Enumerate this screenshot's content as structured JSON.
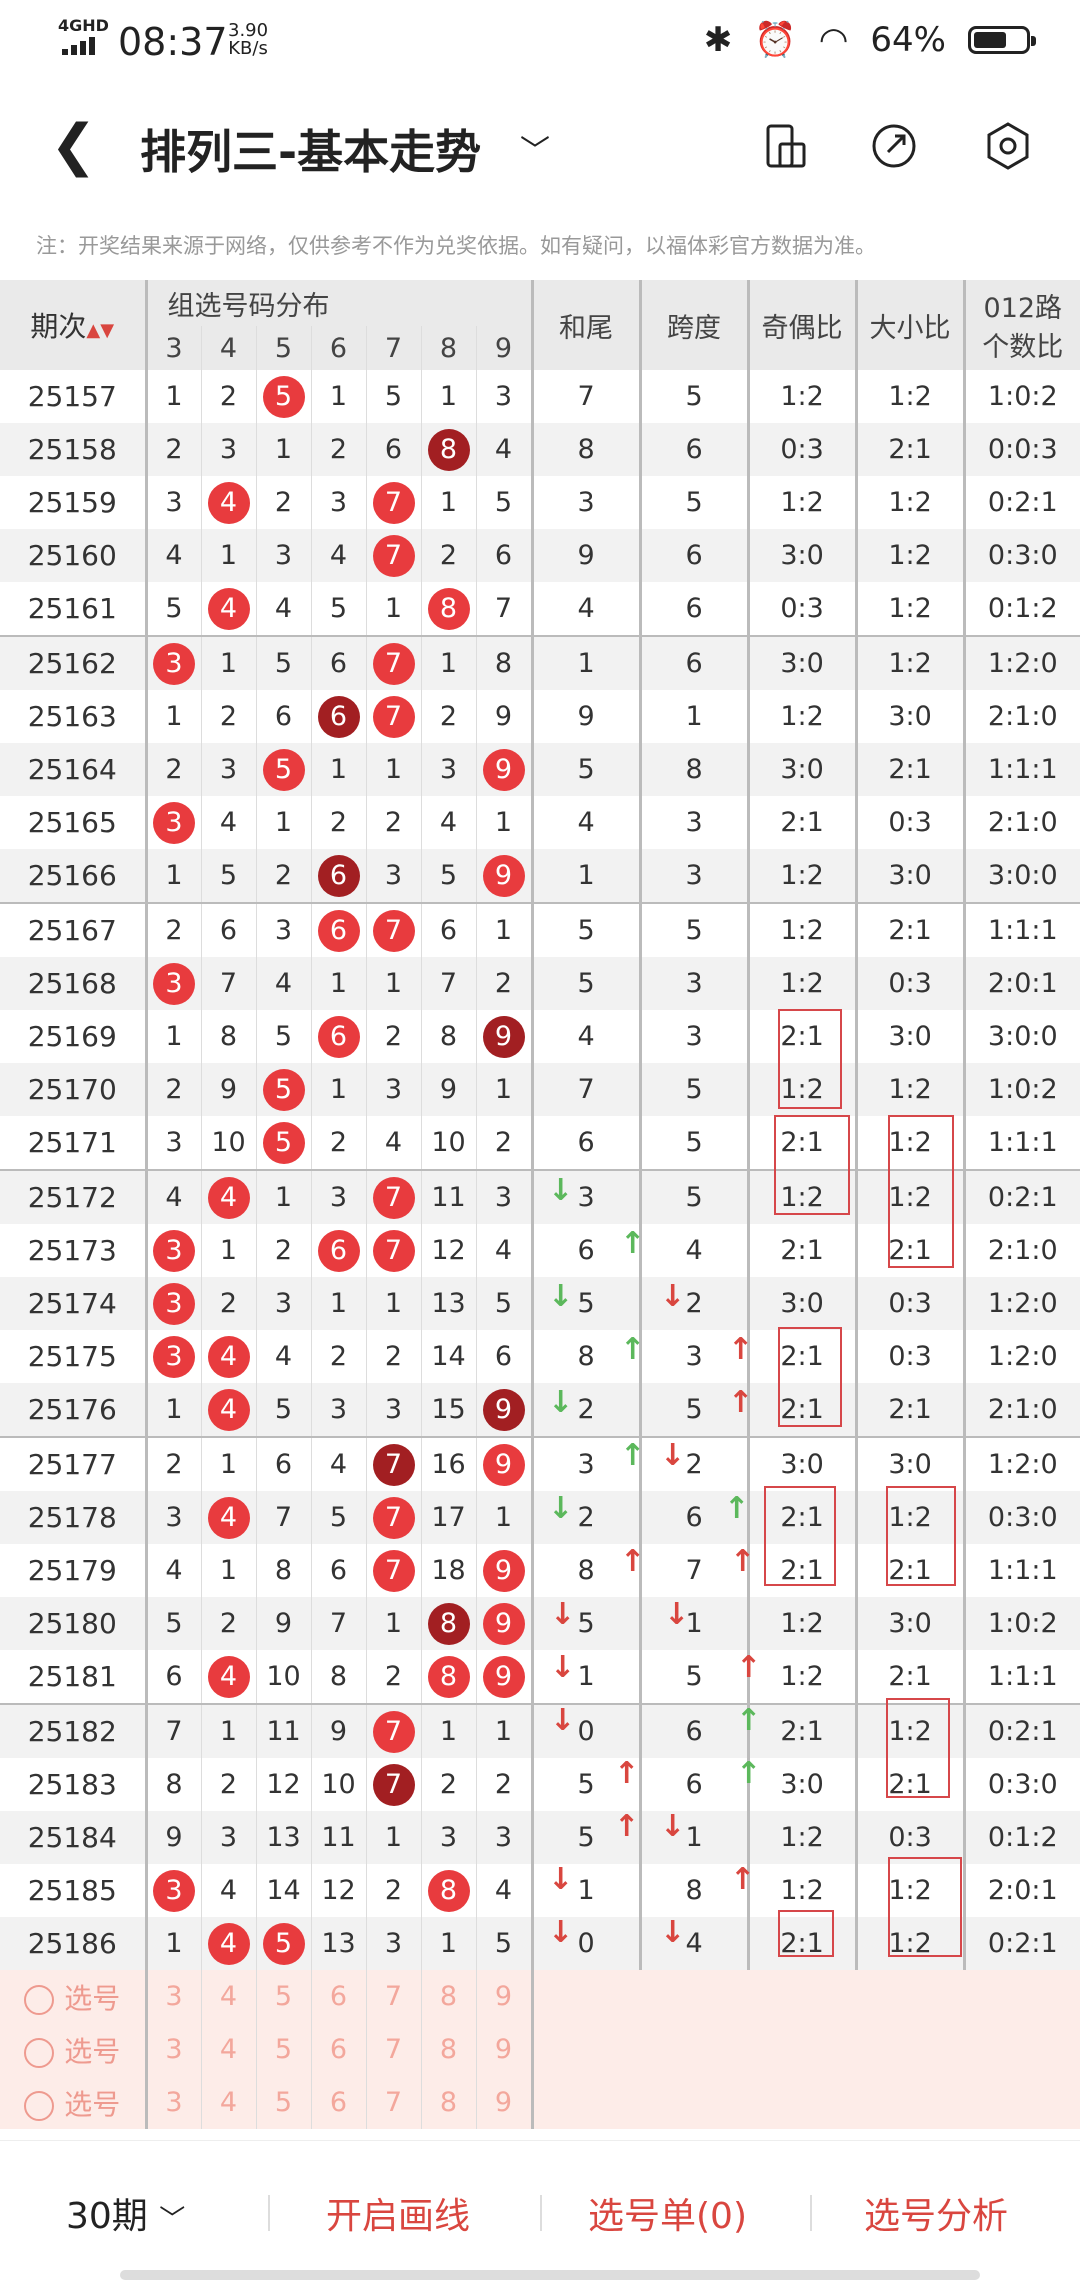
{
  "status": {
    "network": "4GHD",
    "time": "08:37",
    "speed_value": "3.90",
    "speed_unit": "KB/s",
    "battery": "64%",
    "battery_level": 0.64
  },
  "nav": {
    "title": "排列三-基本走势",
    "icons": [
      "back-icon",
      "chevron-down-icon",
      "device-icon",
      "share-icon",
      "settings-icon"
    ]
  },
  "note": "注：开奖结果来源于网络，仅供参考不作为兑奖依据。如有疑问，以福体彩官方数据为准。",
  "header": {
    "issue": "期次",
    "group": "组选号码分布",
    "cols": [
      "3",
      "4",
      "5",
      "6",
      "7",
      "8",
      "9"
    ],
    "sum_tail": "和尾",
    "span": "跨度",
    "odd_even": "奇偶比",
    "big_small": "大小比",
    "road_line1": "012路",
    "road_line2": "个数比"
  },
  "rows": [
    {
      "issue": "25157",
      "c": [
        "1",
        "2",
        "5",
        "1",
        "5",
        "1",
        "3"
      ],
      "b": [
        null,
        null,
        "red",
        null,
        null,
        null,
        null
      ],
      "sum": "7",
      "span": "5",
      "oe": "1:2",
      "bs": "1:2",
      "r": "1:0:2"
    },
    {
      "issue": "25158",
      "c": [
        "2",
        "3",
        "1",
        "2",
        "6",
        "8",
        "4"
      ],
      "b": [
        null,
        null,
        null,
        null,
        null,
        "dark",
        null
      ],
      "sum": "8",
      "span": "6",
      "oe": "0:3",
      "bs": "2:1",
      "r": "0:0:3"
    },
    {
      "issue": "25159",
      "c": [
        "3",
        "4",
        "2",
        "3",
        "7",
        "1",
        "5"
      ],
      "b": [
        null,
        "red",
        null,
        null,
        "red",
        null,
        null
      ],
      "sum": "3",
      "span": "5",
      "oe": "1:2",
      "bs": "1:2",
      "r": "0:2:1"
    },
    {
      "issue": "25160",
      "c": [
        "4",
        "1",
        "3",
        "4",
        "7",
        "2",
        "6"
      ],
      "b": [
        null,
        null,
        null,
        null,
        "red",
        null,
        null
      ],
      "sum": "9",
      "span": "6",
      "oe": "3:0",
      "bs": "1:2",
      "r": "0:3:0"
    },
    {
      "issue": "25161",
      "c": [
        "5",
        "4",
        "4",
        "5",
        "1",
        "8",
        "7"
      ],
      "b": [
        null,
        "red",
        null,
        null,
        null,
        "red",
        null
      ],
      "sum": "4",
      "span": "6",
      "oe": "0:3",
      "bs": "1:2",
      "r": "0:1:2"
    },
    {
      "issue": "25162",
      "c": [
        "3",
        "1",
        "5",
        "6",
        "7",
        "1",
        "8"
      ],
      "b": [
        "red",
        null,
        null,
        null,
        "red",
        null,
        null
      ],
      "sum": "1",
      "span": "6",
      "oe": "3:0",
      "bs": "1:2",
      "r": "1:2:0"
    },
    {
      "issue": "25163",
      "c": [
        "1",
        "2",
        "6",
        "6",
        "7",
        "2",
        "9"
      ],
      "b": [
        null,
        null,
        null,
        "dark",
        "red",
        null,
        null
      ],
      "sum": "9",
      "span": "1",
      "oe": "1:2",
      "bs": "3:0",
      "r": "2:1:0"
    },
    {
      "issue": "25164",
      "c": [
        "2",
        "3",
        "5",
        "1",
        "1",
        "3",
        "9"
      ],
      "b": [
        null,
        null,
        "red",
        null,
        null,
        null,
        "red"
      ],
      "sum": "5",
      "span": "8",
      "oe": "3:0",
      "bs": "2:1",
      "r": "1:1:1"
    },
    {
      "issue": "25165",
      "c": [
        "3",
        "4",
        "1",
        "2",
        "2",
        "4",
        "1"
      ],
      "b": [
        "red",
        null,
        null,
        null,
        null,
        null,
        null
      ],
      "sum": "4",
      "span": "3",
      "oe": "2:1",
      "bs": "0:3",
      "r": "2:1:0"
    },
    {
      "issue": "25166",
      "c": [
        "1",
        "5",
        "2",
        "6",
        "3",
        "5",
        "9"
      ],
      "b": [
        null,
        null,
        null,
        "dark",
        null,
        null,
        "red"
      ],
      "sum": "1",
      "span": "3",
      "oe": "1:2",
      "bs": "3:0",
      "r": "3:0:0"
    },
    {
      "issue": "25167",
      "c": [
        "2",
        "6",
        "3",
        "6",
        "7",
        "6",
        "1"
      ],
      "b": [
        null,
        null,
        null,
        "red",
        "red",
        null,
        null
      ],
      "sum": "5",
      "span": "5",
      "oe": "1:2",
      "bs": "2:1",
      "r": "1:1:1"
    },
    {
      "issue": "25168",
      "c": [
        "3",
        "7",
        "4",
        "1",
        "1",
        "7",
        "2"
      ],
      "b": [
        "red",
        null,
        null,
        null,
        null,
        null,
        null
      ],
      "sum": "5",
      "span": "3",
      "oe": "1:2",
      "bs": "0:3",
      "r": "2:0:1"
    },
    {
      "issue": "25169",
      "c": [
        "1",
        "8",
        "5",
        "6",
        "2",
        "8",
        "9"
      ],
      "b": [
        null,
        null,
        null,
        "red",
        null,
        null,
        "dark"
      ],
      "sum": "4",
      "span": "3",
      "oe": "2:1",
      "bs": "3:0",
      "r": "3:0:0"
    },
    {
      "issue": "25170",
      "c": [
        "2",
        "9",
        "5",
        "1",
        "3",
        "9",
        "1"
      ],
      "b": [
        null,
        null,
        "red",
        null,
        null,
        null,
        null
      ],
      "sum": "7",
      "span": "5",
      "oe": "1:2",
      "bs": "1:2",
      "r": "1:0:2"
    },
    {
      "issue": "25171",
      "c": [
        "3",
        "10",
        "5",
        "2",
        "4",
        "10",
        "2"
      ],
      "b": [
        null,
        null,
        "red",
        null,
        null,
        null,
        null
      ],
      "sum": "6",
      "span": "5",
      "oe": "2:1",
      "bs": "1:2",
      "r": "1:1:1"
    },
    {
      "issue": "25172",
      "c": [
        "4",
        "4",
        "1",
        "3",
        "7",
        "11",
        "3"
      ],
      "b": [
        null,
        "red",
        null,
        null,
        "red",
        null,
        null
      ],
      "sum": "3",
      "span": "5",
      "oe": "1:2",
      "bs": "1:2",
      "r": "0:2:1"
    },
    {
      "issue": "25173",
      "c": [
        "3",
        "1",
        "2",
        "6",
        "7",
        "12",
        "4"
      ],
      "b": [
        "red",
        null,
        null,
        "red",
        "red",
        null,
        null
      ],
      "sum": "6",
      "span": "4",
      "oe": "2:1",
      "bs": "2:1",
      "r": "2:1:0"
    },
    {
      "issue": "25174",
      "c": [
        "3",
        "2",
        "3",
        "1",
        "1",
        "13",
        "5"
      ],
      "b": [
        "red",
        null,
        null,
        null,
        null,
        null,
        null
      ],
      "sum": "5",
      "span": "2",
      "oe": "3:0",
      "bs": "0:3",
      "r": "1:2:0"
    },
    {
      "issue": "25175",
      "c": [
        "3",
        "4",
        "4",
        "2",
        "2",
        "14",
        "6"
      ],
      "b": [
        "red",
        "red",
        null,
        null,
        null,
        null,
        null
      ],
      "sum": "8",
      "span": "3",
      "oe": "2:1",
      "bs": "0:3",
      "r": "1:2:0"
    },
    {
      "issue": "25176",
      "c": [
        "1",
        "4",
        "5",
        "3",
        "3",
        "15",
        "9"
      ],
      "b": [
        null,
        "red",
        null,
        null,
        null,
        null,
        "dark"
      ],
      "sum": "2",
      "span": "5",
      "oe": "2:1",
      "bs": "2:1",
      "r": "2:1:0"
    },
    {
      "issue": "25177",
      "c": [
        "2",
        "1",
        "6",
        "4",
        "7",
        "16",
        "9"
      ],
      "b": [
        null,
        null,
        null,
        null,
        "dark",
        null,
        "red"
      ],
      "sum": "3",
      "span": "2",
      "oe": "3:0",
      "bs": "3:0",
      "r": "1:2:0"
    },
    {
      "issue": "25178",
      "c": [
        "3",
        "4",
        "7",
        "5",
        "7",
        "17",
        "1"
      ],
      "b": [
        null,
        "red",
        null,
        null,
        "red",
        null,
        null
      ],
      "sum": "2",
      "span": "6",
      "oe": "2:1",
      "bs": "1:2",
      "r": "0:3:0"
    },
    {
      "issue": "25179",
      "c": [
        "4",
        "1",
        "8",
        "6",
        "7",
        "18",
        "9"
      ],
      "b": [
        null,
        null,
        null,
        null,
        "red",
        null,
        "red"
      ],
      "sum": "8",
      "span": "7",
      "oe": "2:1",
      "bs": "2:1",
      "r": "1:1:1"
    },
    {
      "issue": "25180",
      "c": [
        "5",
        "2",
        "9",
        "7",
        "1",
        "8",
        "9"
      ],
      "b": [
        null,
        null,
        null,
        null,
        null,
        "dark",
        "red"
      ],
      "sum": "5",
      "span": "1",
      "oe": "1:2",
      "bs": "3:0",
      "r": "1:0:2"
    },
    {
      "issue": "25181",
      "c": [
        "6",
        "4",
        "10",
        "8",
        "2",
        "8",
        "9"
      ],
      "b": [
        null,
        "red",
        null,
        null,
        null,
        "red",
        "red"
      ],
      "sum": "1",
      "span": "5",
      "oe": "1:2",
      "bs": "2:1",
      "r": "1:1:1"
    },
    {
      "issue": "25182",
      "c": [
        "7",
        "1",
        "11",
        "9",
        "7",
        "1",
        "1"
      ],
      "b": [
        null,
        null,
        null,
        null,
        "red",
        null,
        null
      ],
      "sum": "0",
      "span": "6",
      "oe": "2:1",
      "bs": "1:2",
      "r": "0:2:1"
    },
    {
      "issue": "25183",
      "c": [
        "8",
        "2",
        "12",
        "10",
        "7",
        "2",
        "2"
      ],
      "b": [
        null,
        null,
        null,
        null,
        "dark",
        null,
        null
      ],
      "sum": "5",
      "span": "6",
      "oe": "3:0",
      "bs": "2:1",
      "r": "0:3:0"
    },
    {
      "issue": "25184",
      "c": [
        "9",
        "3",
        "13",
        "11",
        "1",
        "3",
        "3"
      ],
      "b": [
        null,
        null,
        null,
        null,
        null,
        null,
        null
      ],
      "sum": "5",
      "span": "1",
      "oe": "1:2",
      "bs": "0:3",
      "r": "0:1:2"
    },
    {
      "issue": "25185",
      "c": [
        "3",
        "4",
        "14",
        "12",
        "2",
        "8",
        "4"
      ],
      "b": [
        "red",
        null,
        null,
        null,
        null,
        "red",
        null
      ],
      "sum": "1",
      "span": "8",
      "oe": "1:2",
      "bs": "1:2",
      "r": "2:0:1"
    },
    {
      "issue": "25186",
      "c": [
        "1",
        "4",
        "5",
        "13",
        "3",
        "1",
        "5"
      ],
      "b": [
        null,
        "red",
        "red",
        null,
        null,
        null,
        null
      ],
      "sum": "0",
      "span": "4",
      "oe": "2:1",
      "bs": "1:2",
      "r": "0:2:1"
    }
  ],
  "select_rows": [
    {
      "label": "选号",
      "nums": [
        "3",
        "4",
        "5",
        "6",
        "7",
        "8",
        "9"
      ]
    },
    {
      "label": "选号",
      "nums": [
        "3",
        "4",
        "5",
        "6",
        "7",
        "8",
        "9"
      ]
    },
    {
      "label": "选号",
      "nums": [
        "3",
        "4",
        "5",
        "6",
        "7",
        "8",
        "9"
      ]
    }
  ],
  "bottom": {
    "period": "30期",
    "draw_line": "开启画线",
    "pick_list": "选号单(0)",
    "analysis": "选号分析"
  },
  "colors": {
    "accent": "#d9463f",
    "ball_red": "#e83b3e",
    "ball_dark": "#a21f22",
    "select_bg": "#fdece8"
  }
}
